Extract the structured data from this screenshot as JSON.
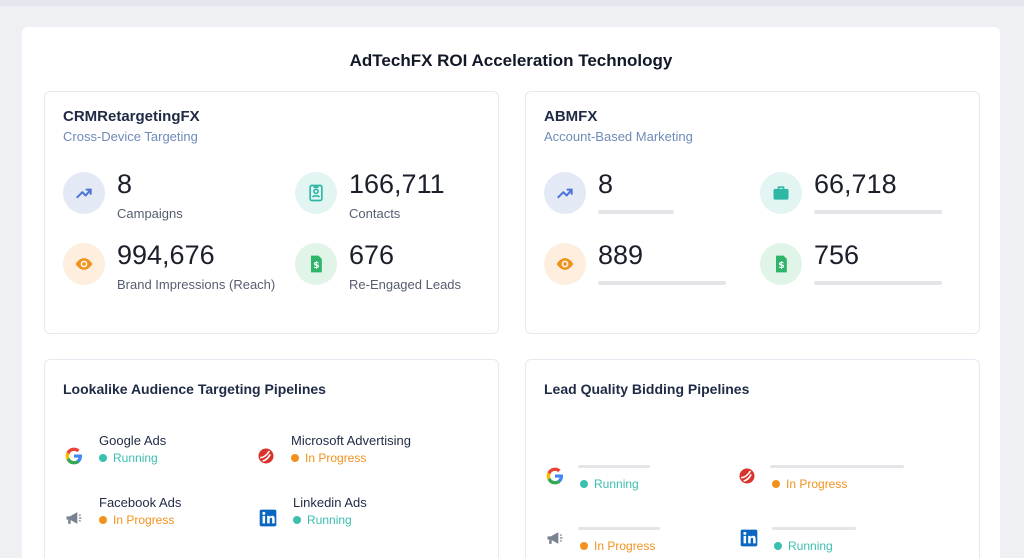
{
  "page_title": "AdTechFX ROI Acceleration Technology",
  "crm": {
    "title": "CRMRetargetingFX",
    "subtitle": "Cross-Device Targeting",
    "metrics": [
      {
        "value": "8",
        "label": "Campaigns",
        "icon": "trend-up-icon"
      },
      {
        "value": "166,711",
        "label": "Contacts",
        "icon": "contact-card-icon"
      },
      {
        "value": "994,676",
        "label": "Brand Impressions (Reach)",
        "icon": "eye-icon"
      },
      {
        "value": "676",
        "label": "Re-Engaged Leads",
        "icon": "dollar-document-icon"
      }
    ]
  },
  "abm": {
    "title": "ABMFX",
    "subtitle": "Account-Based Marketing",
    "metrics": [
      {
        "value": "8",
        "icon": "trend-up-icon"
      },
      {
        "value": "66,718",
        "icon": "briefcase-icon"
      },
      {
        "value": "889",
        "icon": "eye-icon"
      },
      {
        "value": "756",
        "icon": "dollar-document-icon"
      }
    ]
  },
  "lookalike": {
    "title": "Lookalike Audience Targeting Pipelines",
    "pipelines": [
      {
        "name": "Google Ads",
        "status": "Running",
        "icon": "google-icon"
      },
      {
        "name": "Microsoft Advertising",
        "status": "In Progress",
        "icon": "microsoft-advertising-icon"
      },
      {
        "name": "Facebook Ads",
        "status": "In Progress",
        "icon": "megaphone-icon"
      },
      {
        "name": "Linkedin Ads",
        "status": "Running",
        "icon": "linkedin-icon"
      }
    ]
  },
  "lead_quality": {
    "title": "Lead Quality Bidding Pipelines",
    "pipelines": [
      {
        "status": "Running",
        "icon": "google-icon"
      },
      {
        "status": "In Progress",
        "icon": "microsoft-advertising-icon"
      },
      {
        "status": "In Progress",
        "icon": "megaphone-icon"
      },
      {
        "status": "Running",
        "icon": "linkedin-icon"
      }
    ]
  },
  "colors": {
    "running": "#3bbfb0",
    "in_progress": "#f2921d",
    "accent_blue": "#4b74d8",
    "accent_teal": "#2fb7a6",
    "accent_orange": "#f2921d",
    "accent_green": "#2fb56a"
  }
}
